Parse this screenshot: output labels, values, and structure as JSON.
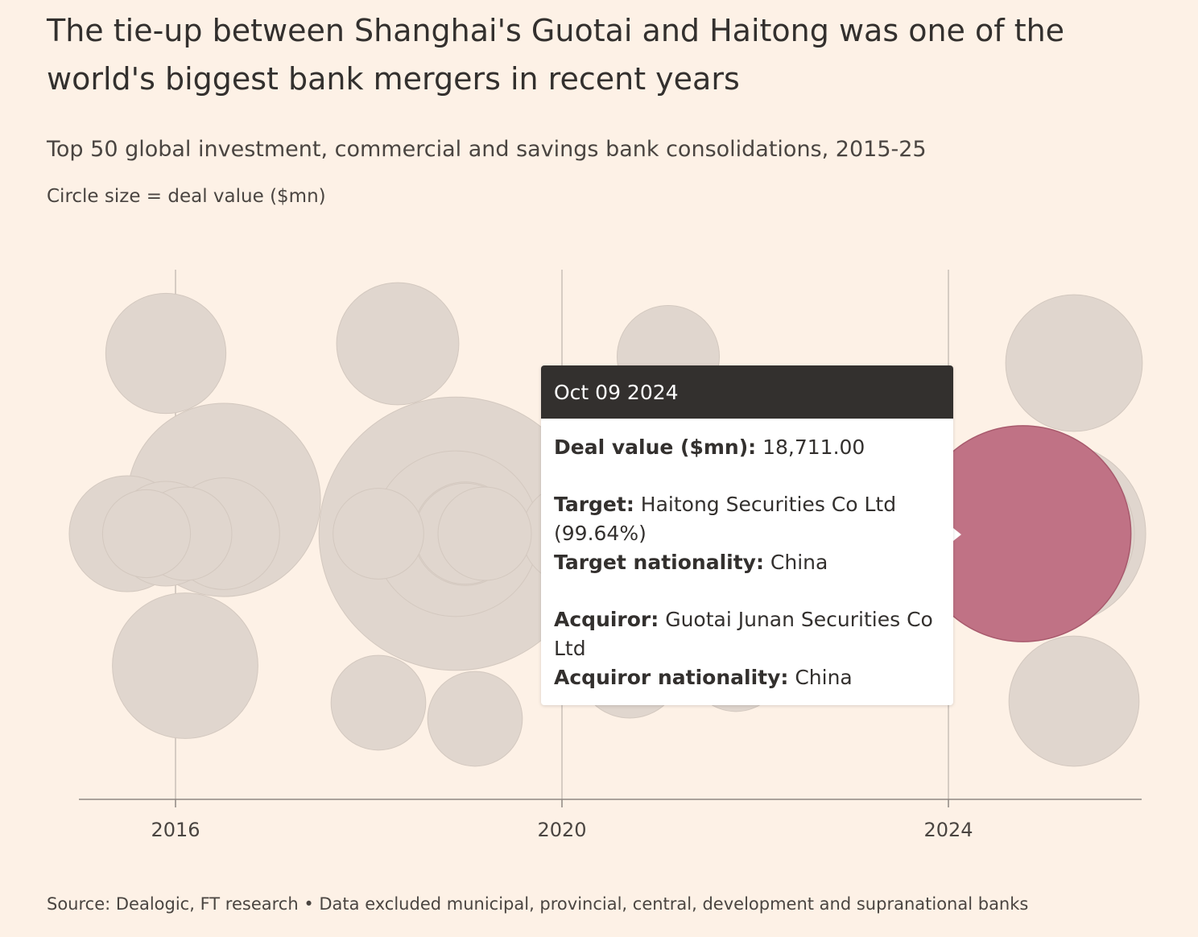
{
  "title": "The tie-up between Shanghai's Guotai and Haitong was one of the world's biggest bank mergers in recent years",
  "subtitle": "Top 50 global investment, commercial and savings bank consolidations, 2015-25",
  "note": "Circle size = deal value ($mn)",
  "source": "Source: Dealogic, FT research • Data excluded municipal, provincial, central, development and supranational banks",
  "colors": {
    "background": "#fdf1e6",
    "bubble": "#e0d6ce",
    "highlight": "#c07285",
    "gridline": "#c9bfb7",
    "axis": "#8f8882",
    "tooltip_header": "#33302e"
  },
  "tooltip": {
    "date": "Oct 09 2024",
    "deal_value_label": "Deal value ($mn):",
    "deal_value": "18,711.00",
    "target_label": "Target:",
    "target": "Haitong Securities Co Ltd (99.64%)",
    "target_nationality_label": "Target nationality:",
    "target_nationality": "China",
    "acquiror_label": "Acquiror:",
    "acquiror": "Guotai Junan Securities Co Ltd",
    "acquiror_nationality_label": "Acquiror nationality:",
    "acquiror_nationality": "China"
  },
  "chart_data": {
    "type": "scatter",
    "title": "The tie-up between Shanghai's Guotai and Haitong was one of the world's biggest bank mergers in recent years",
    "xlabel": "",
    "ylabel": "",
    "x_axis": "date",
    "xlim": [
      2015.0,
      2026.0
    ],
    "x_ticks": [
      2016,
      2020,
      2024
    ],
    "x_tick_labels": [
      "2016",
      "2020",
      "2024"
    ],
    "grid": "vertical at ticks",
    "size_encoding": "deal value ($mn)",
    "highlight": {
      "date": "2024-10-09",
      "deal_value": 18711.0,
      "target": "Haitong Securities Co Ltd (99.64%)",
      "acquiror": "Guotai Junan Securities Co Ltd"
    },
    "points": [
      {
        "x": 2016.1,
        "value": 8500
      },
      {
        "x": 2015.5,
        "value": 5400
      },
      {
        "x": 2015.9,
        "value": 4400
      },
      {
        "x": 2016.5,
        "value": 15000
      },
      {
        "x": 2015.9,
        "value": 5800
      },
      {
        "x": 2016.5,
        "value": 5000
      },
      {
        "x": 2015.7,
        "value": 3100
      },
      {
        "x": 2016.1,
        "value": 3500
      },
      {
        "x": 2019.1,
        "value": 3600
      },
      {
        "x": 2018.9,
        "value": 11000
      },
      {
        "x": 2018.3,
        "value": 6000
      },
      {
        "x": 2018.9,
        "value": 30000
      },
      {
        "x": 2018.1,
        "value": 3600
      },
      {
        "x": 2018.1,
        "value": 3300
      },
      {
        "x": 2019.0,
        "value": 4300
      },
      {
        "x": 2019.0,
        "value": 4100
      },
      {
        "x": 2019.2,
        "value": 3500
      },
      {
        "x": 2020.1,
        "value": 4000
      },
      {
        "x": 2020.7,
        "value": 4400
      },
      {
        "x": 2021.1,
        "value": 4200
      },
      {
        "x": 2021.3,
        "value": 5200
      },
      {
        "x": 2021.8,
        "value": 3600
      },
      {
        "x": 2020.8,
        "value": 5500
      },
      {
        "x": 2021.5,
        "value": 3400
      },
      {
        "x": 2022.0,
        "value": 3000
      },
      {
        "x": 2024.6,
        "value": 4900
      },
      {
        "x": 2025.3,
        "value": 6800
      },
      {
        "x": 2025.1,
        "value": 13300
      },
      {
        "x": 2024.3,
        "value": 11000
      },
      {
        "x": 2025.3,
        "value": 7500
      },
      {
        "x": 2025.1,
        "value": 10200
      },
      {
        "x": 2024.5,
        "value": 4200
      },
      {
        "x": 2025.1,
        "value": 4200
      }
    ]
  }
}
